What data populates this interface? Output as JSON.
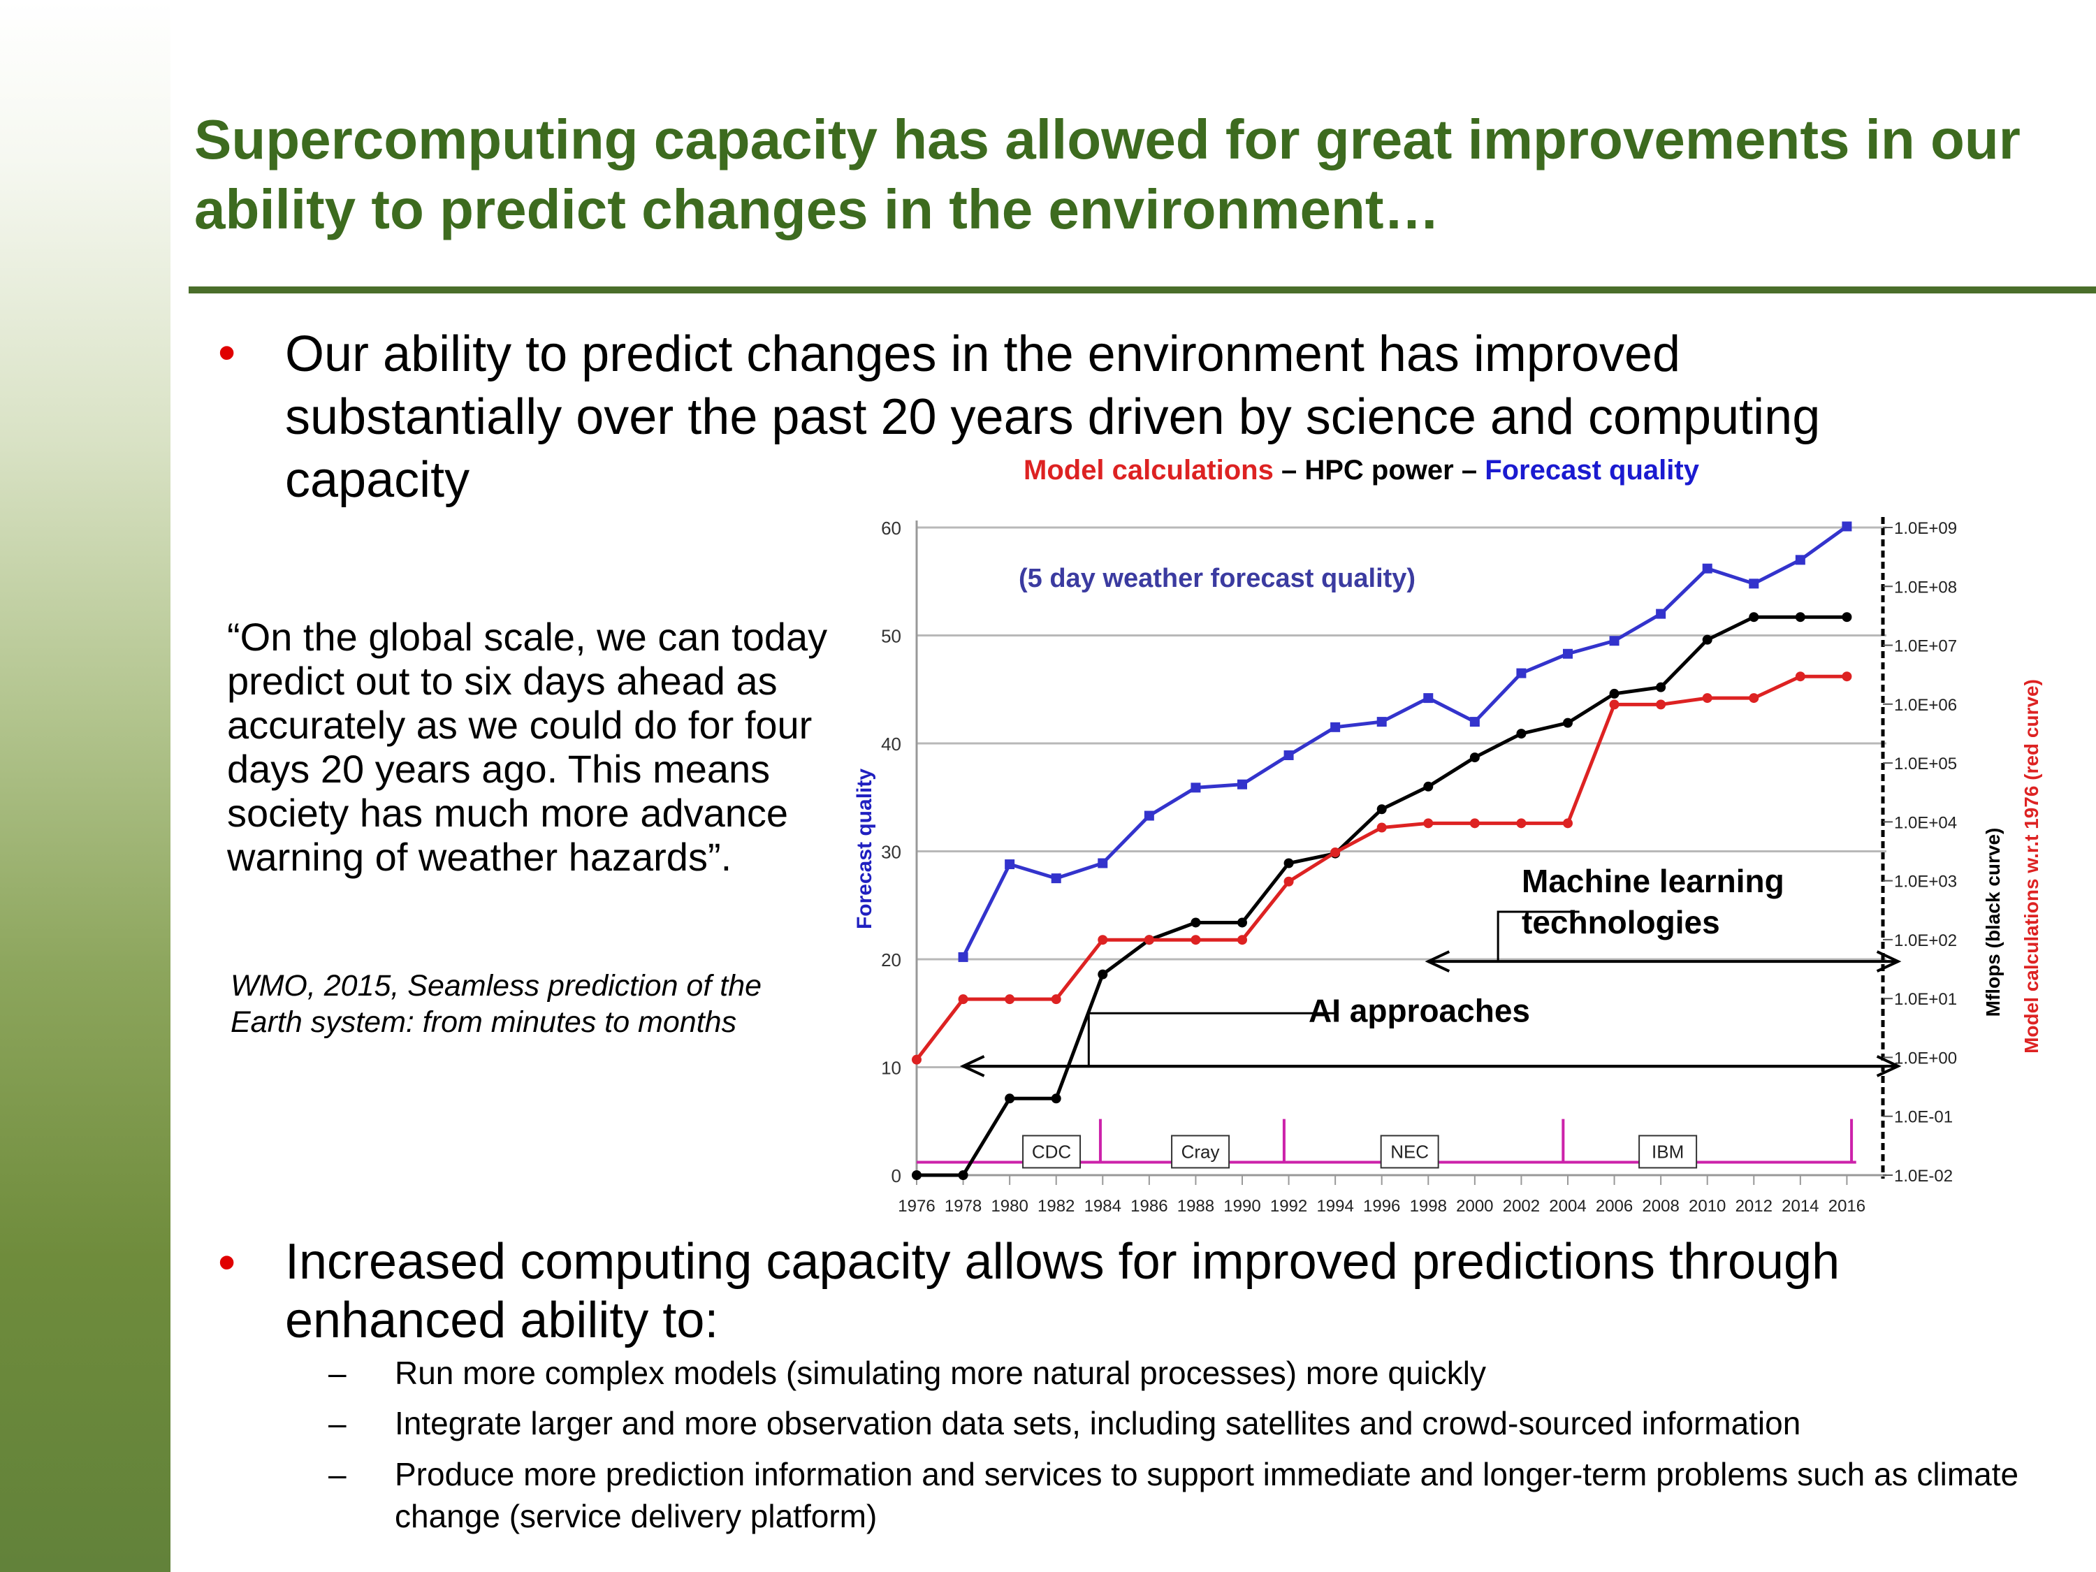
{
  "slide": {
    "title": "Supercomputing capacity has allowed for great improvements in our ability to predict changes in the environment…",
    "bullet1": "Our ability to predict changes in the environment has improved substantially over the past 20 years driven by science and computing capacity",
    "quote": "“On the global scale, we can today predict out to six days ahead as accurately as we could do for four days 20 years ago. This means society has much more advance warning of weather hazards”.",
    "citation": "WMO, 2015, Seamless prediction of the Earth system: from minutes to months",
    "bullet2": "Increased computing capacity allows for improved predictions through enhanced ability to:",
    "sub_bullets": [
      "Run more complex models (simulating more natural processes) more quickly",
      "Integrate larger and more observation data sets, including satellites and crowd-sourced information",
      "Produce more prediction information and services to support immediate and longer-term problems such as climate change (service delivery platform)"
    ],
    "bullet_color": "#e00000",
    "title_color": "#3d6b1f"
  },
  "chart_data": {
    "type": "line",
    "title_parts": {
      "red": "Model calculations",
      "sep1": " – ",
      "black": "HPC power",
      "sep2": " – ",
      "blue": "Forecast quality"
    },
    "subtitle": "(5 day weather forecast quality)",
    "ylabel": "Forecast quality",
    "y2label_black": "Mflops (black curve)",
    "y2label_red": "Model calculations w.r.t 1976  (red curve)",
    "ylim": [
      0,
      60
    ],
    "y_ticks": [
      "0",
      "10",
      "20",
      "30",
      "40",
      "50",
      "60"
    ],
    "x": [
      1976,
      1978,
      1980,
      1982,
      1984,
      1986,
      1988,
      1990,
      1992,
      1994,
      1996,
      1998,
      2000,
      2002,
      2004,
      2006,
      2008,
      2010,
      2012,
      2014,
      2016
    ],
    "x_ticks": [
      "1976",
      "1978",
      "1980",
      "1982",
      "1984",
      "1986",
      "1988",
      "1990",
      "1992",
      "1994",
      "1996",
      "1998",
      "2000",
      "2002",
      "2004",
      "2006",
      "2008",
      "2010",
      "2012",
      "2014",
      "2016"
    ],
    "y2_ticks": [
      "1.0E-02",
      "1.0E-01",
      "1.0E+00",
      "1.0E+01",
      "1.0E+02",
      "1.0E+03",
      "1.0E+04",
      "1.0E+05",
      "1.0E+06",
      "1.0E+07",
      "1.0E+08",
      "1.0E+09"
    ],
    "series": [
      {
        "key": "forecast",
        "color": "#3333cc",
        "marker": "square",
        "x": [
          1978,
          1980,
          1982,
          1984,
          1986,
          1988,
          1990,
          1992,
          1994,
          1996,
          1998,
          2000,
          2002,
          2004,
          2006,
          2008,
          2010,
          2012,
          2014,
          2016
        ],
        "values": [
          20.2,
          28.8,
          27.5,
          28.9,
          33.3,
          35.9,
          36.2,
          38.9,
          41.5,
          42.0,
          44.2,
          42.0,
          46.5,
          48.3,
          49.5,
          52.0,
          56.2,
          54.8,
          57.0,
          60.1
        ]
      },
      {
        "key": "hpc",
        "color": "#000000",
        "marker": "circle",
        "x": [
          1976,
          1978,
          1980,
          1982,
          1984,
          1986,
          1988,
          1990,
          1992,
          1994,
          1996,
          1998,
          2000,
          2002,
          2004,
          2006,
          2008,
          2010,
          2012,
          2014,
          2016
        ],
        "values": [
          0,
          0,
          7.1,
          7.1,
          18.6,
          21.8,
          23.4,
          23.4,
          28.9,
          29.8,
          33.9,
          36.0,
          38.7,
          40.9,
          41.9,
          44.6,
          45.2,
          49.6,
          51.7,
          51.7,
          51.7
        ]
      },
      {
        "key": "model",
        "color": "#dd2222",
        "marker": "circle",
        "x": [
          1976,
          1978,
          1980,
          1982,
          1984,
          1986,
          1988,
          1990,
          1992,
          1994,
          1996,
          1998,
          2000,
          2002,
          2004,
          2006,
          2008,
          2010,
          2012,
          2014,
          2016
        ],
        "values": [
          10.7,
          16.3,
          16.3,
          16.3,
          21.8,
          21.8,
          21.8,
          21.8,
          27.2,
          29.9,
          32.2,
          32.6,
          32.6,
          32.6,
          32.6,
          43.6,
          43.6,
          44.2,
          44.2,
          46.2,
          46.2
        ]
      }
    ],
    "machines": [
      {
        "label": "CDC",
        "x": 1981.8
      },
      {
        "label": "Cray",
        "x": 1988.2
      },
      {
        "label": "NEC",
        "x": 1997.2
      },
      {
        "label": "IBM",
        "x": 2008.3
      }
    ],
    "spikes": [
      1983.9,
      1991.8,
      2003.8,
      2016.2
    ],
    "ml_label": "Machine learning technologies",
    "ai_label": "AI approaches",
    "ml_range": [
      1998.0,
      2018.2
    ],
    "ai_range": [
      1978.0,
      2018.2
    ]
  }
}
